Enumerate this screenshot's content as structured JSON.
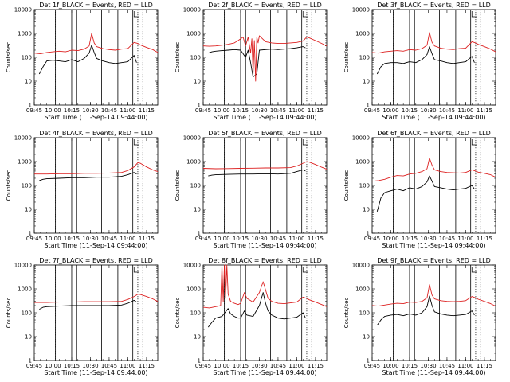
{
  "figure": {
    "x_label": "Start Time (11-Sep-14 09:44:00)",
    "y_label": "Counts/sec",
    "x_tick_labels": [
      "09:45",
      "10:00",
      "10:15",
      "10:30",
      "10:45",
      "11:00",
      "11:15"
    ],
    "y_tick_labels": [
      "1",
      "10",
      "100",
      "1000",
      "10000"
    ],
    "colors": {
      "events": "#000000",
      "lld": "#dd2222",
      "frame": "#000000"
    }
  },
  "chart_data": [
    {
      "type": "line",
      "panel": 1,
      "title": "Det 1f_BLACK = Events, RED = LLD",
      "xlabel": "Start Time (11-Sep-14 09:44:00)",
      "ylabel": "Counts/sec",
      "x_range_min": [
        0,
        99
      ],
      "y_range": [
        1,
        10000
      ],
      "y_scale": "log",
      "solid_vlines_min": [
        17,
        30,
        34,
        54,
        67,
        79
      ],
      "dotted_vlines_min": [
        17,
        83,
        87
      ],
      "series": [
        {
          "name": "Events",
          "x": [
            4,
            7,
            10,
            15,
            20,
            25,
            30,
            35,
            40,
            44,
            46,
            48,
            50,
            55,
            60,
            65,
            70,
            75,
            80,
            82
          ],
          "y": [
            20,
            40,
            70,
            75,
            70,
            65,
            80,
            65,
            90,
            150,
            320,
            160,
            90,
            70,
            60,
            55,
            60,
            65,
            120,
            60
          ]
        },
        {
          "name": "LLD",
          "x": [
            0,
            5,
            10,
            15,
            20,
            25,
            30,
            35,
            40,
            44,
            46,
            48,
            50,
            55,
            60,
            65,
            70,
            75,
            80,
            83,
            85,
            90,
            95,
            99
          ],
          "y": [
            150,
            140,
            160,
            170,
            180,
            170,
            200,
            190,
            220,
            300,
            1000,
            400,
            280,
            230,
            210,
            200,
            220,
            230,
            420,
            380,
            330,
            260,
            210,
            160
          ]
        }
      ]
    },
    {
      "type": "line",
      "panel": 2,
      "title": "Det 2f_BLACK = Events, RED = LLD",
      "xlabel": "Start Time (11-Sep-14 09:44:00)",
      "ylabel": "Counts/sec",
      "x_range_min": [
        0,
        99
      ],
      "y_range": [
        1,
        10000
      ],
      "y_scale": "log",
      "solid_vlines_min": [
        17,
        30,
        34,
        54,
        67,
        79
      ],
      "dotted_vlines_min": [
        17,
        83,
        87
      ],
      "series": [
        {
          "name": "Events",
          "x": [
            4,
            7,
            10,
            15,
            20,
            25,
            30,
            34,
            36,
            38,
            40,
            43,
            45,
            50,
            55,
            60,
            65,
            70,
            75,
            80,
            82
          ],
          "y": [
            150,
            170,
            180,
            190,
            200,
            210,
            200,
            100,
            200,
            60,
            15,
            20,
            200,
            210,
            220,
            210,
            220,
            230,
            250,
            280,
            250
          ]
        },
        {
          "name": "LLD",
          "x": [
            0,
            5,
            10,
            15,
            20,
            25,
            28,
            30,
            32,
            34,
            36,
            38,
            39,
            40,
            41,
            42,
            43,
            44,
            45,
            50,
            55,
            60,
            65,
            70,
            75,
            80,
            83,
            85,
            90,
            95,
            99
          ],
          "y": [
            300,
            290,
            300,
            320,
            350,
            400,
            500,
            600,
            700,
            300,
            700,
            150,
            600,
            20,
            500,
            10,
            700,
            400,
            800,
            450,
            400,
            380,
            380,
            400,
            420,
            480,
            700,
            650,
            500,
            380,
            300
          ]
        }
      ]
    },
    {
      "type": "line",
      "panel": 3,
      "title": "Det 3f_BLACK = Events, RED = LLD",
      "xlabel": "Start Time (11-Sep-14 09:44:00)",
      "ylabel": "Counts/sec",
      "x_range_min": [
        0,
        99
      ],
      "y_range": [
        1,
        10000
      ],
      "y_scale": "log",
      "solid_vlines_min": [
        17,
        30,
        34,
        54,
        67,
        79
      ],
      "dotted_vlines_min": [
        17,
        83,
        87
      ],
      "series": [
        {
          "name": "Events",
          "x": [
            4,
            7,
            10,
            15,
            20,
            25,
            30,
            35,
            40,
            44,
            46,
            48,
            50,
            55,
            60,
            65,
            70,
            75,
            80,
            82
          ],
          "y": [
            20,
            40,
            55,
            60,
            60,
            55,
            65,
            60,
            80,
            130,
            280,
            140,
            80,
            70,
            60,
            55,
            60,
            65,
            110,
            60
          ]
        },
        {
          "name": "LLD",
          "x": [
            0,
            5,
            10,
            15,
            20,
            25,
            30,
            35,
            40,
            44,
            46,
            48,
            50,
            55,
            60,
            65,
            70,
            75,
            80,
            83,
            85,
            90,
            95,
            99
          ],
          "y": [
            160,
            150,
            170,
            180,
            190,
            180,
            210,
            200,
            230,
            320,
            1100,
            420,
            300,
            240,
            220,
            210,
            230,
            240,
            450,
            400,
            350,
            280,
            220,
            170
          ]
        }
      ]
    },
    {
      "type": "line",
      "panel": 4,
      "title": "Det 4f_BLACK = Events, RED = LLD",
      "xlabel": "Start Time (11-Sep-14 09:44:00)",
      "ylabel": "Counts/sec",
      "x_range_min": [
        0,
        99
      ],
      "y_range": [
        1,
        10000
      ],
      "y_scale": "log",
      "solid_vlines_min": [
        17,
        30,
        34,
        54,
        67,
        79
      ],
      "dotted_vlines_min": [
        17,
        83,
        87
      ],
      "series": [
        {
          "name": "Events",
          "x": [
            4,
            7,
            10,
            20,
            30,
            40,
            50,
            60,
            70,
            75,
            80,
            82
          ],
          "y": [
            160,
            180,
            190,
            200,
            210,
            210,
            220,
            220,
            240,
            280,
            350,
            300
          ]
        },
        {
          "name": "LLD",
          "x": [
            0,
            10,
            20,
            30,
            40,
            50,
            60,
            70,
            75,
            80,
            83,
            85,
            90,
            95,
            99
          ],
          "y": [
            300,
            300,
            310,
            310,
            320,
            320,
            330,
            350,
            420,
            600,
            900,
            850,
            600,
            450,
            380
          ]
        }
      ]
    },
    {
      "type": "line",
      "panel": 5,
      "title": "Det 5f_BLACK = Events, RED = LLD",
      "xlabel": "Start Time (11-Sep-14 09:44:00)",
      "ylabel": "Counts/sec",
      "x_range_min": [
        0,
        99
      ],
      "y_range": [
        1,
        10000
      ],
      "y_scale": "log",
      "solid_vlines_min": [
        17,
        30,
        34,
        54,
        67,
        79
      ],
      "dotted_vlines_min": [
        17,
        83,
        87
      ],
      "series": [
        {
          "name": "Events",
          "x": [
            4,
            7,
            10,
            20,
            30,
            40,
            50,
            60,
            70,
            75,
            80,
            82
          ],
          "y": [
            250,
            270,
            280,
            290,
            300,
            300,
            310,
            300,
            320,
            380,
            450,
            400
          ]
        },
        {
          "name": "LLD",
          "x": [
            0,
            10,
            20,
            30,
            40,
            50,
            60,
            70,
            75,
            80,
            83,
            85,
            90,
            95,
            99
          ],
          "y": [
            520,
            500,
            510,
            520,
            530,
            540,
            540,
            560,
            650,
            850,
            1000,
            950,
            750,
            580,
            480
          ]
        }
      ]
    },
    {
      "type": "line",
      "panel": 6,
      "title": "Det 6f_BLACK = Events, RED = LLD",
      "xlabel": "Start Time (11-Sep-14 09:44:00)",
      "ylabel": "Counts/sec",
      "x_range_min": [
        0,
        99
      ],
      "y_range": [
        1,
        10000
      ],
      "y_scale": "log",
      "solid_vlines_min": [
        17,
        30,
        34,
        54,
        67,
        79
      ],
      "dotted_vlines_min": [
        17,
        83,
        87
      ],
      "series": [
        {
          "name": "Events",
          "x": [
            4,
            7,
            10,
            15,
            20,
            25,
            30,
            35,
            40,
            44,
            46,
            48,
            50,
            55,
            60,
            65,
            70,
            75,
            80,
            82
          ],
          "y": [
            8,
            30,
            50,
            60,
            70,
            60,
            80,
            70,
            90,
            140,
            250,
            150,
            90,
            80,
            70,
            65,
            70,
            75,
            100,
            70
          ]
        },
        {
          "name": "LLD",
          "x": [
            0,
            5,
            10,
            15,
            20,
            25,
            30,
            35,
            40,
            44,
            46,
            48,
            50,
            55,
            60,
            65,
            70,
            75,
            80,
            83,
            85,
            90,
            95,
            99
          ],
          "y": [
            150,
            160,
            180,
            220,
            260,
            250,
            300,
            320,
            380,
            500,
            1400,
            700,
            450,
            380,
            350,
            340,
            330,
            350,
            450,
            400,
            360,
            320,
            280,
            220
          ]
        }
      ]
    },
    {
      "type": "line",
      "panel": 7,
      "title": "Det 7f_BLACK = Events, RED = LLD",
      "xlabel": "Start Time (11-Sep-14 09:44:00)",
      "ylabel": "Counts/sec",
      "x_range_min": [
        0,
        99
      ],
      "y_range": [
        1,
        10000
      ],
      "y_scale": "log",
      "solid_vlines_min": [
        17,
        30,
        34,
        54,
        67,
        79
      ],
      "dotted_vlines_min": [
        17,
        83,
        87
      ],
      "series": [
        {
          "name": "Events",
          "x": [
            4,
            7,
            10,
            20,
            30,
            40,
            50,
            60,
            70,
            75,
            80,
            82
          ],
          "y": [
            140,
            170,
            180,
            190,
            200,
            200,
            200,
            200,
            210,
            250,
            330,
            280
          ]
        },
        {
          "name": "LLD",
          "x": [
            0,
            10,
            20,
            30,
            40,
            50,
            60,
            70,
            75,
            80,
            83,
            85,
            90,
            95,
            99
          ],
          "y": [
            270,
            270,
            280,
            280,
            290,
            290,
            290,
            300,
            360,
            480,
            600,
            580,
            480,
            380,
            300
          ]
        }
      ]
    },
    {
      "type": "line",
      "panel": 8,
      "title": "Det 8f_BLACK = Events, RED = LLD",
      "xlabel": "Start Time (11-Sep-14 09:44:00)",
      "ylabel": "Counts/sec",
      "x_range_min": [
        0,
        99
      ],
      "y_range": [
        1,
        10000
      ],
      "y_scale": "log",
      "solid_vlines_min": [
        17,
        30,
        34,
        54,
        67,
        79
      ],
      "dotted_vlines_min": [
        17,
        83,
        87
      ],
      "series": [
        {
          "name": "Events",
          "x": [
            4,
            7,
            10,
            15,
            20,
            22,
            25,
            28,
            30,
            33,
            35,
            40,
            45,
            48,
            50,
            52,
            55,
            60,
            65,
            70,
            75,
            80,
            82
          ],
          "y": [
            25,
            40,
            60,
            70,
            150,
            90,
            70,
            60,
            60,
            120,
            80,
            70,
            200,
            700,
            250,
            120,
            80,
            60,
            55,
            60,
            65,
            100,
            60
          ]
        },
        {
          "name": "LLD",
          "x": [
            0,
            5,
            10,
            14,
            15,
            16,
            17,
            18,
            19,
            20,
            22,
            25,
            28,
            30,
            33,
            35,
            40,
            45,
            48,
            50,
            52,
            55,
            60,
            65,
            70,
            75,
            80,
            83,
            85,
            90,
            95,
            99
          ],
          "y": [
            170,
            160,
            180,
            200,
            10000,
            300,
            10000,
            400,
            10000,
            600,
            300,
            250,
            220,
            250,
            700,
            400,
            280,
            700,
            2000,
            900,
            400,
            300,
            250,
            240,
            260,
            280,
            450,
            400,
            350,
            280,
            220,
            180
          ]
        }
      ]
    },
    {
      "type": "line",
      "panel": 9,
      "title": "Det 9f_BLACK = Events, RED = LLD",
      "xlabel": "Start Time (11-Sep-14 09:44:00)",
      "ylabel": "Counts/sec",
      "x_range_min": [
        0,
        99
      ],
      "y_range": [
        1,
        10000
      ],
      "y_scale": "log",
      "solid_vlines_min": [
        17,
        30,
        34,
        54,
        67,
        79
      ],
      "dotted_vlines_min": [
        17,
        83,
        87
      ],
      "series": [
        {
          "name": "Events",
          "x": [
            4,
            7,
            10,
            15,
            20,
            25,
            30,
            35,
            40,
            44,
            46,
            48,
            50,
            55,
            60,
            65,
            70,
            75,
            80,
            82
          ],
          "y": [
            30,
            50,
            70,
            80,
            85,
            75,
            90,
            80,
            100,
            180,
            500,
            200,
            110,
            90,
            80,
            75,
            80,
            85,
            120,
            80
          ]
        },
        {
          "name": "LLD",
          "x": [
            0,
            5,
            10,
            15,
            20,
            25,
            30,
            35,
            40,
            44,
            46,
            48,
            50,
            55,
            60,
            65,
            70,
            75,
            80,
            83,
            85,
            90,
            95,
            99
          ],
          "y": [
            200,
            190,
            210,
            230,
            250,
            240,
            280,
            270,
            300,
            420,
            1500,
            550,
            380,
            320,
            300,
            290,
            300,
            320,
            480,
            420,
            370,
            300,
            240,
            190
          ]
        }
      ]
    }
  ]
}
